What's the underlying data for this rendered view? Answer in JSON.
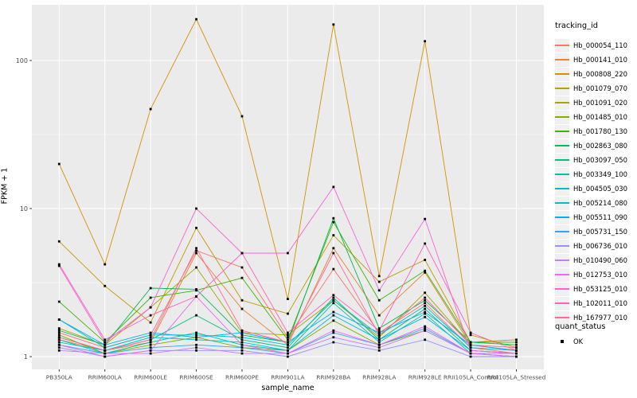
{
  "figure": {
    "y_axis_title": "FPKM + 1",
    "x_axis_title": "sample_name"
  },
  "legend": {
    "tracking_title": "tracking_id",
    "quant_title": "quant_status",
    "quant_ok_label": "OK"
  },
  "chart_data": {
    "type": "line",
    "title": "",
    "xlabel": "sample_name",
    "ylabel": "FPKM + 1",
    "y_scale": "log10",
    "y_ticks": [
      1,
      10,
      100
    ],
    "y_minor_ticks": [
      3.1623,
      31.623
    ],
    "ylim": [
      0.83,
      238
    ],
    "grid": "white major/minor on gray panel",
    "legend_position": "right",
    "panel_background": "#EBEBEB",
    "tick_label_color": "#4D4D4D",
    "point_color": "#000000",
    "quant_status_all": "OK",
    "categories": [
      "PB350LA",
      "RRIM600LA",
      "RRIM600LE",
      "RRIM600SE",
      "RRIM600PE",
      "RRIM901LA",
      "RRIM928BA",
      "RRIM928LA",
      "RRIM928LE",
      "RRII105LA_Control",
      "RRII105LA_Stressed"
    ],
    "series": [
      {
        "name": "Hb_000054_110",
        "color": "#F8766D",
        "values": [
          1.45,
          1.15,
          1.4,
          5.2,
          4.0,
          1.35,
          3.9,
          1.45,
          2.3,
          1.15,
          1.05
        ]
      },
      {
        "name": "Hb_000141_010",
        "color": "#EA8331",
        "values": [
          1.3,
          1.1,
          1.25,
          5.0,
          2.1,
          1.2,
          5.4,
          1.9,
          3.7,
          1.2,
          1.1
        ]
      },
      {
        "name": "Hb_000808_220",
        "color": "#D89000",
        "values": [
          20,
          4.2,
          47,
          190,
          42,
          2.45,
          175,
          3.5,
          135,
          1.4,
          1.15
        ]
      },
      {
        "name": "Hb_001079_070",
        "color": "#C09B00",
        "values": [
          6.0,
          3.0,
          1.7,
          7.4,
          2.4,
          1.95,
          6.6,
          3.2,
          4.5,
          1.25,
          1.3
        ]
      },
      {
        "name": "Hb_001091_020",
        "color": "#A3A500",
        "values": [
          1.55,
          1.2,
          2.15,
          4.0,
          1.45,
          1.4,
          2.4,
          1.35,
          2.7,
          1.2,
          1.1
        ]
      },
      {
        "name": "Hb_001485_010",
        "color": "#7CAE00",
        "values": [
          1.4,
          1.05,
          1.2,
          1.35,
          1.15,
          1.1,
          1.75,
          1.2,
          1.5,
          1.05,
          1.0
        ]
      },
      {
        "name": "Hb_001780_130",
        "color": "#39B600",
        "values": [
          2.35,
          1.25,
          2.5,
          2.8,
          3.4,
          1.3,
          8.1,
          2.4,
          3.8,
          1.25,
          1.25
        ]
      },
      {
        "name": "Hb_002863_080",
        "color": "#00BB4E",
        "values": [
          1.5,
          1.2,
          2.9,
          2.85,
          1.4,
          1.25,
          8.6,
          1.55,
          2.4,
          1.25,
          1.2
        ]
      },
      {
        "name": "Hb_003097_050",
        "color": "#00BF7D",
        "values": [
          1.35,
          1.1,
          1.3,
          1.9,
          1.3,
          1.15,
          2.5,
          1.3,
          2.1,
          1.1,
          1.05
        ]
      },
      {
        "name": "Hb_003349_100",
        "color": "#00C1A3",
        "values": [
          1.3,
          1.05,
          1.25,
          1.45,
          1.2,
          1.1,
          2.3,
          1.25,
          1.95,
          1.05,
          1.05
        ]
      },
      {
        "name": "Hb_004505_030",
        "color": "#00BFC4",
        "values": [
          1.78,
          1.15,
          1.4,
          1.4,
          1.35,
          1.2,
          2.4,
          1.4,
          2.2,
          1.15,
          1.1
        ]
      },
      {
        "name": "Hb_005214_080",
        "color": "#00BAE0",
        "values": [
          1.25,
          1.1,
          1.35,
          1.3,
          1.25,
          1.1,
          1.9,
          1.3,
          1.85,
          1.1,
          1.05
        ]
      },
      {
        "name": "Hb_005511_090",
        "color": "#00B0F6",
        "values": [
          1.78,
          1.2,
          1.45,
          1.35,
          1.45,
          1.25,
          2.0,
          1.45,
          2.0,
          1.2,
          1.1
        ]
      },
      {
        "name": "Hb_005731_150",
        "color": "#35A2FF",
        "values": [
          1.2,
          1.05,
          1.15,
          1.2,
          1.15,
          1.05,
          1.45,
          1.2,
          1.55,
          1.05,
          1.0
        ]
      },
      {
        "name": "Hb_006736_010",
        "color": "#9590FF",
        "values": [
          1.15,
          1.0,
          1.1,
          1.1,
          1.1,
          1.0,
          1.25,
          1.1,
          1.3,
          1.0,
          1.0
        ]
      },
      {
        "name": "Hb_010490_060",
        "color": "#C77CFF",
        "values": [
          1.1,
          1.05,
          1.05,
          1.15,
          1.05,
          1.05,
          1.35,
          1.15,
          1.5,
          1.05,
          1.05
        ]
      },
      {
        "name": "Hb_012753_010",
        "color": "#E76BF3",
        "values": [
          1.2,
          1.0,
          1.1,
          2.55,
          1.2,
          1.05,
          1.5,
          1.2,
          1.6,
          1.05,
          1.0
        ]
      },
      {
        "name": "Hb_053125_010",
        "color": "#FA62DB",
        "values": [
          4.1,
          1.25,
          2.15,
          10,
          5.0,
          5.0,
          14,
          2.8,
          8.5,
          1.1,
          1.05
        ]
      },
      {
        "name": "Hb_102011_010",
        "color": "#FF62BC",
        "values": [
          4.2,
          1.3,
          1.9,
          2.55,
          5.0,
          1.45,
          2.6,
          1.5,
          5.8,
          1.45,
          1.1
        ]
      },
      {
        "name": "Hb_167977_010",
        "color": "#FF6A98",
        "values": [
          1.35,
          1.1,
          1.3,
          5.4,
          1.5,
          1.25,
          5.0,
          1.4,
          2.5,
          1.2,
          1.15
        ]
      }
    ]
  }
}
